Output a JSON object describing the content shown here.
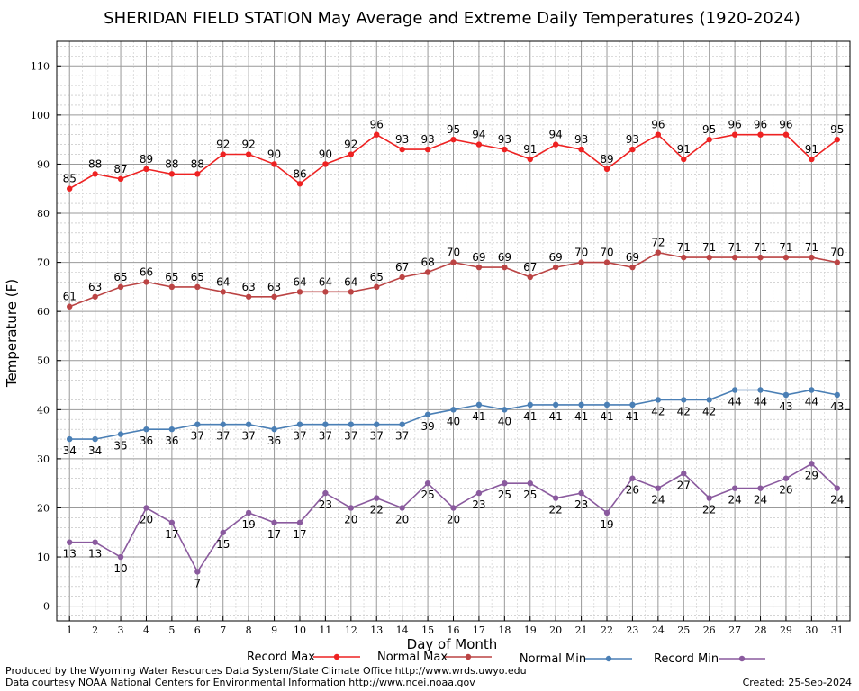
{
  "chart_data": {
    "type": "line",
    "title": "SHERIDAN FIELD STATION May Average and Extreme Daily Temperatures (1920-2024)",
    "xlabel": "Day of Month",
    "ylabel": "Temperature (F)",
    "xlim": [
      0.5,
      31.5
    ],
    "ylim": [
      -3,
      115
    ],
    "x": [
      1,
      2,
      3,
      4,
      5,
      6,
      7,
      8,
      9,
      10,
      11,
      12,
      13,
      14,
      15,
      16,
      17,
      18,
      19,
      20,
      21,
      22,
      23,
      24,
      25,
      26,
      27,
      28,
      29,
      30,
      31
    ],
    "y_ticks": [
      0,
      10,
      20,
      30,
      40,
      50,
      60,
      70,
      80,
      90,
      100,
      110
    ],
    "grid": true,
    "legend_position": "bottom",
    "series": [
      {
        "name": "Record Max",
        "color": "#ee2222",
        "label_position": "above",
        "values": [
          85,
          88,
          87,
          89,
          88,
          88,
          92,
          92,
          90,
          86,
          90,
          92,
          96,
          93,
          93,
          95,
          94,
          93,
          91,
          94,
          93,
          89,
          93,
          96,
          91,
          95,
          96,
          96,
          96,
          91,
          95
        ]
      },
      {
        "name": "Normal Max",
        "color": "#bb4444",
        "label_position": "above",
        "values": [
          61,
          63,
          65,
          66,
          65,
          65,
          64,
          63,
          63,
          64,
          64,
          64,
          65,
          67,
          68,
          70,
          69,
          69,
          67,
          69,
          70,
          70,
          69,
          72,
          71,
          71,
          71,
          71,
          71,
          71,
          70
        ]
      },
      {
        "name": "Normal Min",
        "color": "#4a7fb5",
        "label_position": "below",
        "values": [
          34,
          34,
          35,
          36,
          36,
          37,
          37,
          37,
          36,
          37,
          37,
          37,
          37,
          37,
          39,
          40,
          41,
          40,
          41,
          41,
          41,
          41,
          41,
          42,
          42,
          42,
          44,
          44,
          43,
          44,
          43
        ]
      },
      {
        "name": "Record Min",
        "color": "#8a5a9e",
        "label_position": "below",
        "values": [
          13,
          13,
          10,
          20,
          17,
          7,
          15,
          19,
          17,
          17,
          23,
          20,
          22,
          20,
          25,
          20,
          23,
          25,
          25,
          22,
          23,
          19,
          26,
          24,
          27,
          22,
          24,
          24,
          26,
          29,
          24
        ]
      }
    ]
  },
  "footer": {
    "line1": "Produced by the Wyoming Water Resources Data System/State Climate Office http://www.wrds.uwyo.edu",
    "line2": "Data courtesy NOAA National Centers for Environmental Information http://www.ncei.noaa.gov",
    "created": "Created:  25-Sep-2024"
  }
}
